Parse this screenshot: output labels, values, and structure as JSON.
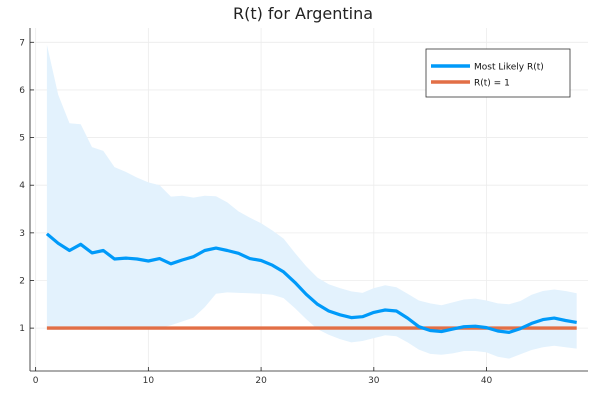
{
  "chart_data": {
    "type": "line",
    "title": "R(t) for Argentina",
    "xlabel": "",
    "ylabel": "",
    "xlim": [
      -0.5,
      49
    ],
    "ylim": [
      0.1,
      7.3
    ],
    "x_ticks": [
      0,
      10,
      20,
      30,
      40
    ],
    "y_ticks": [
      1,
      2,
      3,
      4,
      5,
      6,
      7
    ],
    "grid": true,
    "legend_position": "top-right",
    "colors": {
      "most_likely": "#009af9",
      "band": "#e3f2fd",
      "r_equals_one": "#e26f46",
      "grid": "#ececec",
      "axis": "#222222"
    },
    "x": [
      1,
      2,
      3,
      4,
      5,
      6,
      7,
      8,
      9,
      10,
      11,
      12,
      13,
      14,
      15,
      16,
      17,
      18,
      19,
      20,
      21,
      22,
      23,
      24,
      25,
      26,
      27,
      28,
      29,
      30,
      31,
      32,
      33,
      34,
      35,
      36,
      37,
      38,
      39,
      40,
      41,
      42,
      43,
      44,
      45,
      46,
      47,
      48
    ],
    "series": [
      {
        "name": "Most Likely R(t)",
        "values": [
          2.98,
          2.78,
          2.63,
          2.76,
          2.58,
          2.63,
          2.45,
          2.47,
          2.45,
          2.41,
          2.46,
          2.35,
          2.43,
          2.5,
          2.63,
          2.68,
          2.63,
          2.57,
          2.46,
          2.42,
          2.32,
          2.18,
          1.96,
          1.71,
          1.5,
          1.36,
          1.28,
          1.22,
          1.24,
          1.33,
          1.38,
          1.36,
          1.21,
          1.03,
          0.95,
          0.93,
          0.98,
          1.03,
          1.04,
          1.01,
          0.94,
          0.91,
          0.99,
          1.1,
          1.18,
          1.21,
          1.16,
          1.12
        ]
      },
      {
        "name": "R(t) = 1",
        "values": [
          1,
          1,
          1,
          1,
          1,
          1,
          1,
          1,
          1,
          1,
          1,
          1,
          1,
          1,
          1,
          1,
          1,
          1,
          1,
          1,
          1,
          1,
          1,
          1,
          1,
          1,
          1,
          1,
          1,
          1,
          1,
          1,
          1,
          1,
          1,
          1,
          1,
          1,
          1,
          1,
          1,
          1,
          1,
          1,
          1,
          1,
          1,
          1
        ]
      }
    ],
    "band": {
      "upper": [
        6.95,
        5.9,
        5.3,
        5.28,
        4.8,
        4.72,
        4.38,
        4.28,
        4.16,
        4.06,
        4.0,
        3.76,
        3.78,
        3.74,
        3.78,
        3.77,
        3.64,
        3.45,
        3.32,
        3.2,
        3.05,
        2.88,
        2.58,
        2.3,
        2.06,
        1.92,
        1.84,
        1.77,
        1.74,
        1.84,
        1.9,
        1.86,
        1.72,
        1.58,
        1.52,
        1.48,
        1.54,
        1.6,
        1.62,
        1.58,
        1.52,
        1.5,
        1.57,
        1.7,
        1.78,
        1.81,
        1.78,
        1.73
      ],
      "lower": [
        0.97,
        0.96,
        0.97,
        0.98,
        0.96,
        0.97,
        0.96,
        0.96,
        0.97,
        0.97,
        1.0,
        1.06,
        1.14,
        1.22,
        1.44,
        1.72,
        1.75,
        1.74,
        1.73,
        1.72,
        1.7,
        1.63,
        1.42,
        1.19,
        0.98,
        0.86,
        0.77,
        0.7,
        0.73,
        0.79,
        0.85,
        0.83,
        0.7,
        0.55,
        0.46,
        0.44,
        0.47,
        0.52,
        0.52,
        0.49,
        0.4,
        0.36,
        0.45,
        0.54,
        0.6,
        0.63,
        0.6,
        0.57
      ]
    }
  }
}
